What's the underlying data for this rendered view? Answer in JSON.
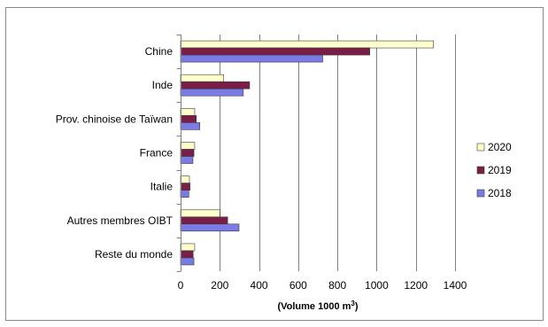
{
  "chart_data": {
    "type": "bar",
    "orientation": "horizontal",
    "categories": [
      "Chine",
      "Inde",
      "Prov. chinoise de Taïwan",
      "France",
      "Italie",
      "Autres membres OIBT",
      "Reste du monde"
    ],
    "series": [
      {
        "name": "2020",
        "color": "#FFFFCC",
        "values": [
          1290,
          220,
          72,
          72,
          45,
          200,
          72
        ]
      },
      {
        "name": "2019",
        "color": "#7B1E47",
        "values": [
          965,
          352,
          80,
          68,
          48,
          240,
          64
        ]
      },
      {
        "name": "2018",
        "color": "#7B7BE6",
        "values": [
          725,
          320,
          98,
          63,
          42,
          298,
          68
        ]
      }
    ],
    "xlim": [
      0,
      1400
    ],
    "xticks": [
      "0",
      "200",
      "400",
      "600",
      "800",
      "1000",
      "1200",
      "1400"
    ],
    "xlabel": "(Volume 1000 m",
    "xlabel_sup": "3",
    "xlabel_end": ")",
    "legend_position": "right",
    "legend_order": [
      "2020",
      "2019",
      "2018"
    ],
    "grid": "vertical"
  }
}
